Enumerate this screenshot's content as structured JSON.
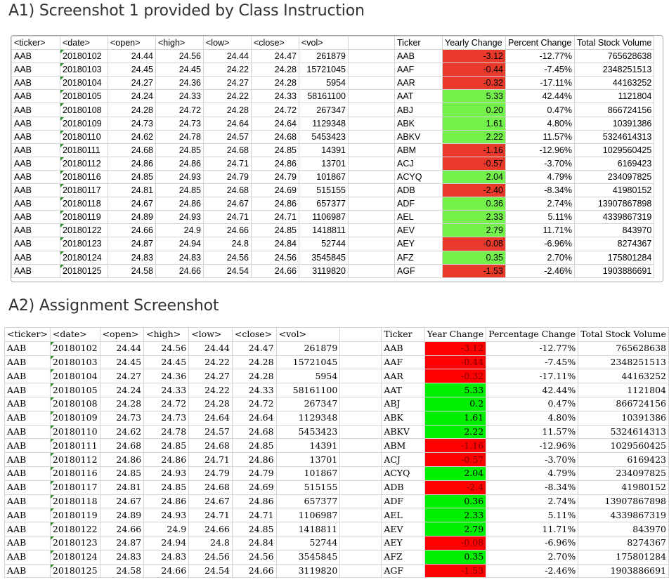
{
  "section1_title": "A1) Screenshot 1 provided by Class Instruction",
  "section2_title": "A2) Assignment Screenshot",
  "table1": {
    "headers": [
      "<ticker>",
      "<date>",
      "<open>",
      "<high>",
      "<low>",
      "<close>",
      "<vol>"
    ],
    "summary_headers": [
      "Ticker",
      "Yearly Change",
      "Percent Change",
      "Total Stock Volume"
    ]
  },
  "table2": {
    "headers": [
      "<ticker>",
      "<date>",
      "<open>",
      "<high>",
      "<low>",
      "<close>",
      "<vol>"
    ],
    "summary_headers": [
      "Ticker",
      "Year Change",
      "Percentage Change",
      "Total Stock Volume"
    ]
  },
  "rows": [
    {
      "ticker": "AAB",
      "date": "20180102",
      "open": "24.44",
      "high": "24.56",
      "low": "24.44",
      "close": "24.47",
      "vol": "261879",
      "s_ticker": "AAB",
      "yc1": "-3.12",
      "yc2": "-3.12",
      "pct": "-12.77%",
      "tsv": "765628638",
      "sign": "neg"
    },
    {
      "ticker": "AAB",
      "date": "20180103",
      "open": "24.45",
      "high": "24.45",
      "low": "24.22",
      "close": "24.28",
      "vol": "15721045",
      "s_ticker": "AAF",
      "yc1": "-0.44",
      "yc2": "-0.44",
      "pct": "-7.45%",
      "tsv": "2348251513",
      "sign": "neg"
    },
    {
      "ticker": "AAB",
      "date": "20180104",
      "open": "24.27",
      "high": "24.36",
      "low": "24.27",
      "close": "24.28",
      "vol": "5954",
      "s_ticker": "AAR",
      "yc1": "-0.32",
      "yc2": "-0.32",
      "pct": "-17.11%",
      "tsv": "44163252",
      "sign": "neg"
    },
    {
      "ticker": "AAB",
      "date": "20180105",
      "open": "24.24",
      "high": "24.33",
      "low": "24.22",
      "close": "24.33",
      "vol": "58161100",
      "s_ticker": "AAT",
      "yc1": "5.33",
      "yc2": "5.33",
      "pct": "42.44%",
      "tsv": "1121804",
      "sign": "pos"
    },
    {
      "ticker": "AAB",
      "date": "20180108",
      "open": "24.28",
      "high": "24.72",
      "low": "24.28",
      "close": "24.72",
      "vol": "267347",
      "s_ticker": "ABJ",
      "yc1": "0.20",
      "yc2": "0.2",
      "pct": "0.47%",
      "tsv": "866724156",
      "sign": "pos"
    },
    {
      "ticker": "AAB",
      "date": "20180109",
      "open": "24.73",
      "high": "24.73",
      "low": "24.64",
      "close": "24.64",
      "vol": "1129348",
      "s_ticker": "ABK",
      "yc1": "1.61",
      "yc2": "1.61",
      "pct": "4.80%",
      "tsv": "10391386",
      "sign": "pos"
    },
    {
      "ticker": "AAB",
      "date": "20180110",
      "open": "24.62",
      "high": "24.78",
      "low": "24.57",
      "close": "24.68",
      "vol": "5453423",
      "s_ticker": "ABKV",
      "yc1": "2.22",
      "yc2": "2.22",
      "pct": "11.57%",
      "tsv": "5324614313",
      "sign": "pos"
    },
    {
      "ticker": "AAB",
      "date": "20180111",
      "open": "24.68",
      "high": "24.85",
      "low": "24.68",
      "close": "24.85",
      "vol": "14391",
      "s_ticker": "ABM",
      "yc1": "-1.16",
      "yc2": "-1.16",
      "pct": "-12.96%",
      "tsv": "1029560425",
      "sign": "neg"
    },
    {
      "ticker": "AAB",
      "date": "20180112",
      "open": "24.86",
      "high": "24.86",
      "low": "24.71",
      "close": "24.86",
      "vol": "13701",
      "s_ticker": "ACJ",
      "yc1": "-0.57",
      "yc2": "-0.57",
      "pct": "-3.70%",
      "tsv": "6169423",
      "sign": "neg"
    },
    {
      "ticker": "AAB",
      "date": "20180116",
      "open": "24.85",
      "high": "24.93",
      "low": "24.79",
      "close": "24.79",
      "vol": "101867",
      "s_ticker": "ACYQ",
      "yc1": "2.04",
      "yc2": "2.04",
      "pct": "4.79%",
      "tsv": "234097825",
      "sign": "pos"
    },
    {
      "ticker": "AAB",
      "date": "20180117",
      "open": "24.81",
      "high": "24.85",
      "low": "24.68",
      "close": "24.69",
      "vol": "515155",
      "s_ticker": "ADB",
      "yc1": "-2.40",
      "yc2": "-2.4",
      "pct": "-8.34%",
      "tsv": "41980152",
      "sign": "neg"
    },
    {
      "ticker": "AAB",
      "date": "20180118",
      "open": "24.67",
      "high": "24.86",
      "low": "24.67",
      "close": "24.86",
      "vol": "657377",
      "s_ticker": "ADF",
      "yc1": "0.36",
      "yc2": "0.36",
      "pct": "2.74%",
      "tsv": "13907867898",
      "sign": "pos"
    },
    {
      "ticker": "AAB",
      "date": "20180119",
      "open": "24.89",
      "high": "24.93",
      "low": "24.71",
      "close": "24.71",
      "vol": "1106987",
      "s_ticker": "AEL",
      "yc1": "2.33",
      "yc2": "2.33",
      "pct": "5.11%",
      "tsv": "4339867319",
      "sign": "pos"
    },
    {
      "ticker": "AAB",
      "date": "20180122",
      "open": "24.66",
      "high": "24.9",
      "low": "24.66",
      "close": "24.85",
      "vol": "1418811",
      "s_ticker": "AEV",
      "yc1": "2.79",
      "yc2": "2.79",
      "pct": "11.71%",
      "tsv": "843970",
      "sign": "pos"
    },
    {
      "ticker": "AAB",
      "date": "20180123",
      "open": "24.87",
      "high": "24.94",
      "low": "24.8",
      "close": "24.84",
      "vol": "52744",
      "s_ticker": "AEY",
      "yc1": "-0.08",
      "yc2": "-0.08",
      "pct": "-6.96%",
      "tsv": "8274367",
      "sign": "neg"
    },
    {
      "ticker": "AAB",
      "date": "20180124",
      "open": "24.83",
      "high": "24.83",
      "low": "24.56",
      "close": "24.56",
      "vol": "3545845",
      "s_ticker": "AFZ",
      "yc1": "0.35",
      "yc2": "0.35",
      "pct": "2.70%",
      "tsv": "175801284",
      "sign": "pos"
    },
    {
      "ticker": "AAB",
      "date": "20180125",
      "open": "24.58",
      "high": "24.66",
      "low": "24.54",
      "close": "24.66",
      "vol": "3119820",
      "s_ticker": "AGF",
      "yc1": "-1.53",
      "yc2": "-1.53",
      "pct": "-2.46%",
      "tsv": "1903886691",
      "sign": "neg"
    }
  ]
}
